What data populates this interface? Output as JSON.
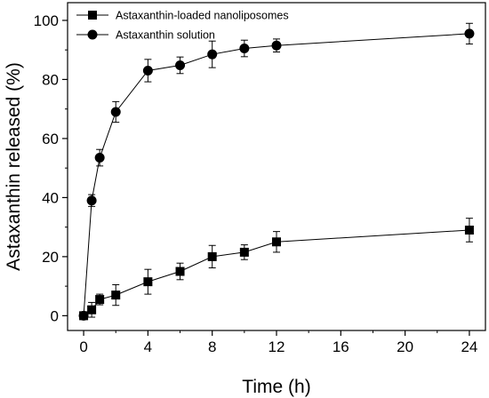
{
  "chart_data": {
    "type": "line",
    "xlabel": "Time (h)",
    "ylabel": "Astaxanthin released (%)",
    "xlim": [
      -1,
      25
    ],
    "ylim": [
      -5,
      106
    ],
    "x_ticks": [
      0,
      4,
      8,
      12,
      16,
      20,
      24
    ],
    "y_ticks": [
      0,
      20,
      40,
      60,
      80,
      100
    ],
    "legend_position": "top-left",
    "grid": false,
    "series": [
      {
        "name": "Astaxanthin-loaded nanoliposomes",
        "marker": "square",
        "color": "#000000",
        "x": [
          0,
          0.5,
          1,
          2,
          4,
          6,
          8,
          10,
          12,
          24
        ],
        "y": [
          0,
          2,
          5.5,
          7,
          11.5,
          15,
          20,
          21.5,
          25,
          29
        ],
        "error": [
          0.8,
          2.5,
          1.8,
          3.5,
          4.2,
          2.8,
          3.8,
          2.5,
          3.5,
          4
        ]
      },
      {
        "name": "Astaxanthin solution",
        "marker": "circle",
        "color": "#000000",
        "x": [
          0,
          0.5,
          1,
          2,
          4,
          6,
          8,
          10,
          12,
          24
        ],
        "y": [
          0,
          39,
          53.5,
          69,
          83,
          84.8,
          88.5,
          90.5,
          91.5,
          95.5
        ],
        "error": [
          0.8,
          2,
          2.8,
          3.5,
          3.8,
          2.8,
          4.5,
          2.8,
          2.2,
          3.5
        ]
      }
    ]
  }
}
